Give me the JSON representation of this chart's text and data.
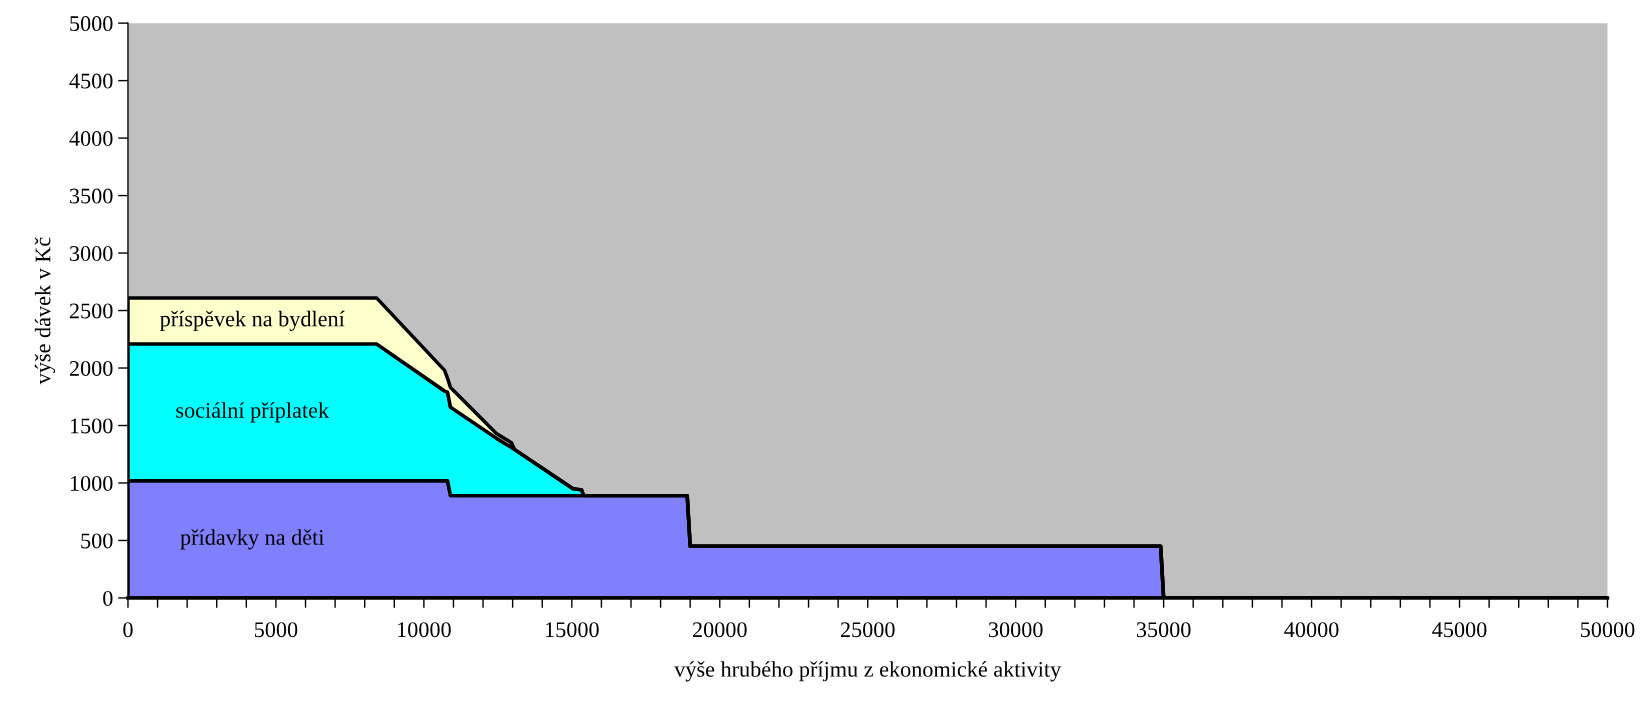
{
  "chart_data": {
    "type": "area",
    "stacked": true,
    "xlabel": "výše hrubého příjmu z ekonomické aktivity",
    "ylabel": "výše dávek v Kč",
    "x": [
      0,
      8400,
      10700,
      10800,
      10900,
      12450,
      12960,
      13070,
      15040,
      15330,
      15400,
      18900,
      19000,
      34900,
      35000,
      50000
    ],
    "series": [
      {
        "name": "přídavky na děti",
        "color": "#8080ff",
        "values": [
          1020,
          1020,
          1020,
          1020,
          890,
          890,
          890,
          890,
          890,
          890,
          890,
          890,
          450,
          450,
          0,
          0
        ]
      },
      {
        "name": "sociální příplatek",
        "color": "#00ffff",
        "values": [
          1190,
          1190,
          780,
          770,
          770,
          500,
          420,
          400,
          60,
          50,
          0,
          0,
          0,
          0,
          0,
          0
        ]
      },
      {
        "name": "příspěvek na bydlení",
        "color": "#ffffcc",
        "values": [
          400,
          400,
          180,
          120,
          170,
          40,
          40,
          0,
          0,
          0,
          0,
          0,
          0,
          0,
          0,
          0
        ]
      }
    ],
    "xlim": [
      0,
      50000
    ],
    "ylim": [
      0,
      5000
    ],
    "xticks": [
      0,
      {
        "value": 1000,
        "label": null
      },
      {
        "value": 2000,
        "label": null
      },
      {
        "value": 3000,
        "label": null
      },
      {
        "value": 4000,
        "label": null
      },
      5000,
      {
        "value": 6000,
        "label": null
      },
      {
        "value": 7000,
        "label": null
      },
      {
        "value": 8000,
        "label": null
      },
      {
        "value": 9000,
        "label": null
      },
      10000,
      {
        "value": 11000,
        "label": null
      },
      {
        "value": 12000,
        "label": null
      },
      {
        "value": 13000,
        "label": null
      },
      {
        "value": 14000,
        "label": null
      },
      15000,
      {
        "value": 16000,
        "label": null
      },
      {
        "value": 17000,
        "label": null
      },
      {
        "value": 18000,
        "label": null
      },
      {
        "value": 19000,
        "label": null
      },
      20000,
      {
        "value": 21000,
        "label": null
      },
      {
        "value": 22000,
        "label": null
      },
      {
        "value": 23000,
        "label": null
      },
      {
        "value": 24000,
        "label": null
      },
      25000,
      {
        "value": 26000,
        "label": null
      },
      {
        "value": 27000,
        "label": null
      },
      {
        "value": 28000,
        "label": null
      },
      {
        "value": 29000,
        "label": null
      },
      30000,
      {
        "value": 31000,
        "label": null
      },
      {
        "value": 32000,
        "label": null
      },
      {
        "value": 33000,
        "label": null
      },
      {
        "value": 34000,
        "label": null
      },
      35000,
      {
        "value": 36000,
        "label": null
      },
      {
        "value": 37000,
        "label": null
      },
      {
        "value": 38000,
        "label": null
      },
      {
        "value": 39000,
        "label": null
      },
      40000,
      {
        "value": 41000,
        "label": null
      },
      {
        "value": 42000,
        "label": null
      },
      {
        "value": 43000,
        "label": null
      },
      {
        "value": 44000,
        "label": null
      },
      45000,
      {
        "value": 46000,
        "label": null
      },
      {
        "value": 47000,
        "label": null
      },
      {
        "value": 48000,
        "label": null
      },
      {
        "value": 49000,
        "label": null
      },
      50000
    ],
    "yticks": [
      0,
      500,
      1000,
      1500,
      2000,
      2500,
      3000,
      3500,
      4000,
      4500,
      5000
    ],
    "grid": false,
    "legend": false
  }
}
